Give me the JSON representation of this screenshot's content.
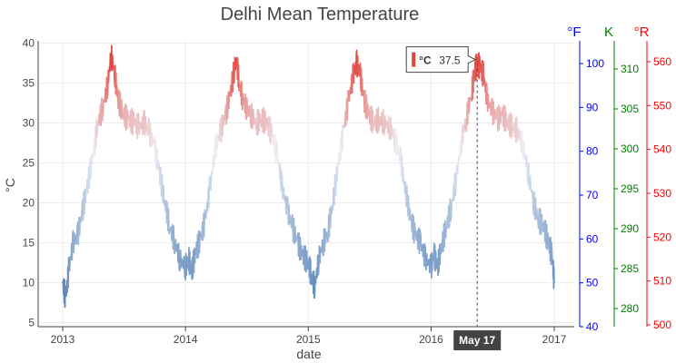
{
  "chart_data": {
    "type": "line",
    "title": "Delhi Mean Temperature",
    "xlabel": "date",
    "ylabel": "°C",
    "x_ticks": [
      "2013",
      "2014",
      "2015",
      "2016",
      "2017"
    ],
    "x_range": [
      "2013-01-01",
      "2017-01-01"
    ],
    "y_ticks": [
      5,
      10,
      15,
      20,
      25,
      30,
      35,
      40
    ],
    "ylim": [
      4.5,
      40.3
    ],
    "grid": true,
    "secondary_axes": [
      {
        "label": "°F",
        "color": "#0000ff",
        "ticks": [
          40,
          50,
          60,
          70,
          80,
          90,
          100
        ]
      },
      {
        "label": "K",
        "color": "#008000",
        "ticks": [
          280,
          285,
          290,
          295,
          300,
          305,
          310
        ]
      },
      {
        "label": "°R",
        "color": "#ff0000",
        "ticks": [
          500,
          510,
          520,
          530,
          540,
          550,
          560
        ]
      }
    ],
    "colorscale": {
      "low": "#4a7ab5",
      "mid": "#eef0f5",
      "high": "#e0453f"
    },
    "series": [
      {
        "dates": [
          "2013-01-01",
          "2013-01-10",
          "2013-01-20",
          "2013-02-01",
          "2013-02-15",
          "2013-03-01",
          "2013-03-15",
          "2013-04-01",
          "2013-04-15",
          "2013-05-01",
          "2013-05-15",
          "2013-05-25",
          "2013-06-05",
          "2013-06-15",
          "2013-07-01",
          "2013-07-15",
          "2013-08-01",
          "2013-08-15",
          "2013-09-01",
          "2013-09-15",
          "2013-10-01",
          "2013-10-15",
          "2013-11-01",
          "2013-11-15",
          "2013-12-01",
          "2013-12-15",
          "2014-01-01",
          "2014-01-10",
          "2014-01-20",
          "2014-02-01",
          "2014-02-15",
          "2014-03-01",
          "2014-03-15",
          "2014-04-01",
          "2014-04-15",
          "2014-05-01",
          "2014-05-15",
          "2014-06-01",
          "2014-06-10",
          "2014-06-20",
          "2014-07-01",
          "2014-07-15",
          "2014-08-01",
          "2014-08-15",
          "2014-09-01",
          "2014-09-15",
          "2014-10-01",
          "2014-10-15",
          "2014-11-01",
          "2014-11-15",
          "2014-12-01",
          "2014-12-15",
          "2015-01-01",
          "2015-01-10",
          "2015-01-20",
          "2015-02-01",
          "2015-02-15",
          "2015-03-01",
          "2015-03-15",
          "2015-04-01",
          "2015-04-15",
          "2015-05-01",
          "2015-05-15",
          "2015-05-25",
          "2015-06-05",
          "2015-06-15",
          "2015-07-01",
          "2015-07-15",
          "2015-08-01",
          "2015-08-15",
          "2015-09-01",
          "2015-09-15",
          "2015-10-01",
          "2015-10-15",
          "2015-11-01",
          "2015-11-15",
          "2015-12-01",
          "2015-12-15",
          "2016-01-01",
          "2016-01-10",
          "2016-01-20",
          "2016-02-01",
          "2016-02-15",
          "2016-03-01",
          "2016-03-15",
          "2016-04-01",
          "2016-04-15",
          "2016-05-01",
          "2016-05-10",
          "2016-05-17",
          "2016-05-25",
          "2016-06-05",
          "2016-06-15",
          "2016-07-01",
          "2016-07-15",
          "2016-08-01",
          "2016-08-15",
          "2016-09-01",
          "2016-09-15",
          "2016-10-01",
          "2016-10-15",
          "2016-11-01",
          "2016-11-15",
          "2016-12-01",
          "2016-12-15",
          "2016-12-25",
          "2017-01-01"
        ],
        "values": [
          10.0,
          8.0,
          12.0,
          15.0,
          16.0,
          19.0,
          22.0,
          26.0,
          30.0,
          32.0,
          35.0,
          38.5,
          36.0,
          33.0,
          31.0,
          30.5,
          30.0,
          29.5,
          30.0,
          29.0,
          27.0,
          24.0,
          20.0,
          17.0,
          15.0,
          13.0,
          12.0,
          13.0,
          11.5,
          14.0,
          15.5,
          18.0,
          22.0,
          27.0,
          29.0,
          31.0,
          34.0,
          38.0,
          35.0,
          33.0,
          32.0,
          31.0,
          30.0,
          30.5,
          30.0,
          28.5,
          26.0,
          22.0,
          19.0,
          17.0,
          15.0,
          13.5,
          12.5,
          11.0,
          9.5,
          13.0,
          15.0,
          16.5,
          20.0,
          25.0,
          29.0,
          33.0,
          36.0,
          37.5,
          36.0,
          33.0,
          31.0,
          30.0,
          30.5,
          30.0,
          29.5,
          28.0,
          26.0,
          22.0,
          18.0,
          16.0,
          15.0,
          13.0,
          12.0,
          13.5,
          12.0,
          14.5,
          17.0,
          19.5,
          23.0,
          28.0,
          30.5,
          34.0,
          36.5,
          37.5,
          37.0,
          36.0,
          33.0,
          31.5,
          30.5,
          31.0,
          30.0,
          29.5,
          29.0,
          27.0,
          24.0,
          20.0,
          18.0,
          17.0,
          15.0,
          13.5,
          10.0
        ]
      }
    ],
    "hover": {
      "series_label": "°C",
      "value": "37.5",
      "date_label": "May 17",
      "date": "2016-05-17",
      "color": "#e0453f"
    }
  }
}
